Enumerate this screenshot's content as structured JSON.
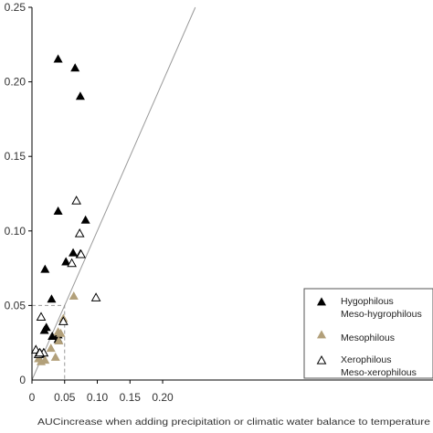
{
  "chart_data": {
    "type": "scatter",
    "xlabel": "AUCincrease when adding precipitation or climatic water balance to temperature",
    "ylabel": "",
    "xlim": [
      0,
      0.25
    ],
    "ylim": [
      0,
      0.25
    ],
    "x_ticks": [
      "0",
      "0.05",
      "0.10",
      "0.15",
      "0.20"
    ],
    "y_ticks": [
      "0.05",
      "0.10",
      "0.15",
      "0.20",
      "0.25"
    ],
    "origin_label": "0",
    "reference_line": "y = x",
    "dashed_box": {
      "x": [
        0,
        0.05
      ],
      "y": [
        0,
        0.05
      ]
    },
    "legend_position": "bottom-right",
    "series": [
      {
        "legend": [
          "Hygophilous",
          "Meso-hygrophilous"
        ],
        "marker": "filled-triangle",
        "color": "#000000",
        "points": [
          [
            0.04,
            0.215
          ],
          [
            0.066,
            0.209
          ],
          [
            0.074,
            0.19
          ],
          [
            0.04,
            0.113
          ],
          [
            0.082,
            0.107
          ],
          [
            0.063,
            0.085
          ],
          [
            0.052,
            0.079
          ],
          [
            0.02,
            0.074
          ],
          [
            0.03,
            0.054
          ],
          [
            0.022,
            0.035
          ],
          [
            0.019,
            0.033
          ],
          [
            0.031,
            0.029
          ],
          [
            0.04,
            0.03
          ],
          [
            0.04,
            0.027
          ],
          [
            0.014,
            0.017
          ]
        ]
      },
      {
        "legend": [
          "Mesophilous"
        ],
        "marker": "filled-triangle",
        "color": "#b2a07a",
        "points": [
          [
            0.064,
            0.056
          ],
          [
            0.048,
            0.041
          ],
          [
            0.04,
            0.032
          ],
          [
            0.044,
            0.031
          ],
          [
            0.041,
            0.026
          ],
          [
            0.029,
            0.021
          ],
          [
            0.036,
            0.015
          ],
          [
            0.02,
            0.013
          ],
          [
            0.014,
            0.012
          ],
          [
            0.01,
            0.014
          ]
        ]
      },
      {
        "legend": [
          "Xerophilous",
          "Meso-xerophilous"
        ],
        "marker": "open-triangle",
        "color": "#000000",
        "points": [
          [
            0.068,
            0.12
          ],
          [
            0.073,
            0.098
          ],
          [
            0.074,
            0.084
          ],
          [
            0.075,
            0.084
          ],
          [
            0.061,
            0.078
          ],
          [
            0.098,
            0.055
          ],
          [
            0.014,
            0.042
          ],
          [
            0.048,
            0.039
          ],
          [
            0.006,
            0.02
          ],
          [
            0.01,
            0.017
          ],
          [
            0.018,
            0.018
          ],
          [
            0.012,
            0.018
          ]
        ]
      }
    ]
  }
}
